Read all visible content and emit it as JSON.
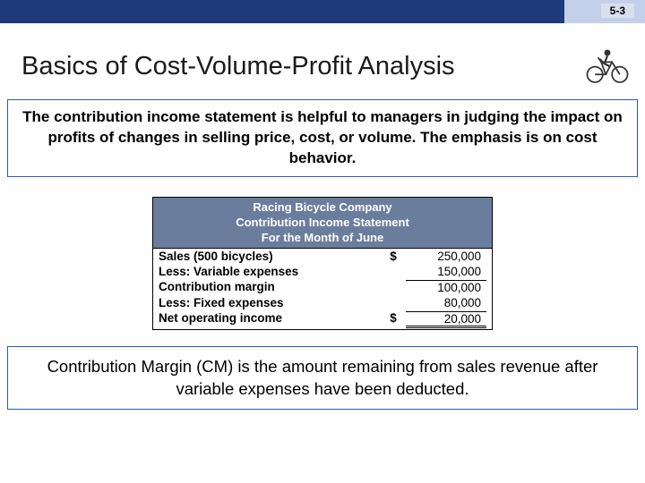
{
  "page_number": "5-3",
  "title": "Basics of Cost-Volume-Profit Analysis",
  "intro_text": "The contribution income statement is helpful to managers in judging the impact on profits of changes in selling price, cost, or volume. The emphasis is on cost behavior.",
  "statement": {
    "header_line1": "Racing Bicycle Company",
    "header_line2": "Contribution Income Statement",
    "header_line3": "For the Month of June",
    "header_bg": "#6b7d9c",
    "header_color": "#ffffff",
    "rows": [
      {
        "label": "Sales (500 bicycles)",
        "currency": "$",
        "value": "250,000",
        "cls": ""
      },
      {
        "label": "Less: Variable expenses",
        "currency": "",
        "value": "150,000",
        "cls": ""
      },
      {
        "label": "Contribution margin",
        "currency": "",
        "value": "100,000",
        "cls": "border-top-thin"
      },
      {
        "label": "Less: Fixed expenses",
        "currency": "",
        "value": "80,000",
        "cls": ""
      },
      {
        "label": "Net operating income",
        "currency": "$",
        "value": "20,000",
        "cls": "border-tb"
      }
    ]
  },
  "footer_text": "Contribution Margin (CM) is the amount remaining from sales revenue after variable expenses have been deducted.",
  "colors": {
    "top_bar": "#1f3a7a",
    "box_border": "#2b5aa8"
  }
}
